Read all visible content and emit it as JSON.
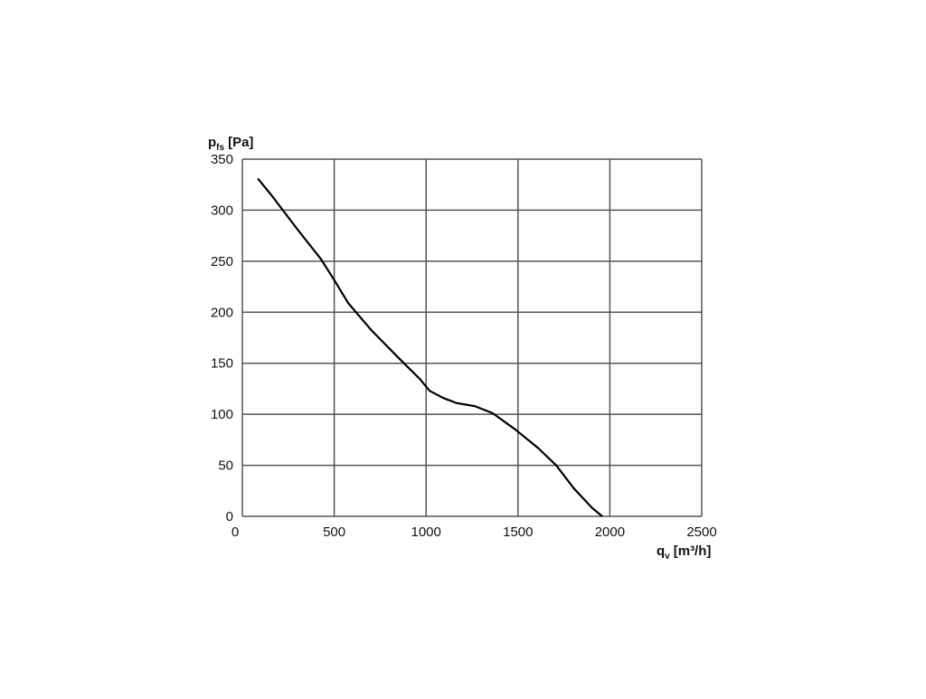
{
  "chart_data": {
    "type": "line",
    "y_label": {
      "symbol": "p",
      "subscript": "fs",
      "unit": "[Pa]"
    },
    "x_label": {
      "symbol": "q",
      "subscript": "v",
      "unit": "[m³/h]"
    },
    "x": [
      84,
      157,
      305,
      428,
      502,
      576,
      699,
      846,
      969,
      1019,
      1093,
      1166,
      1265,
      1363,
      1486,
      1609,
      1708,
      1806,
      1905,
      1959
    ],
    "values": [
      331,
      315,
      280,
      252,
      231,
      209,
      183,
      156,
      134,
      123,
      116,
      111,
      108,
      101,
      85,
      67,
      50,
      27,
      8,
      0
    ],
    "color": "#000000",
    "xlim": [
      0,
      2500
    ],
    "xticks": [
      0,
      500,
      1000,
      1500,
      2000,
      2500
    ],
    "ylim": [
      0,
      350
    ],
    "yticks": [
      0,
      50,
      100,
      150,
      200,
      250,
      300,
      350
    ],
    "grid": true
  }
}
